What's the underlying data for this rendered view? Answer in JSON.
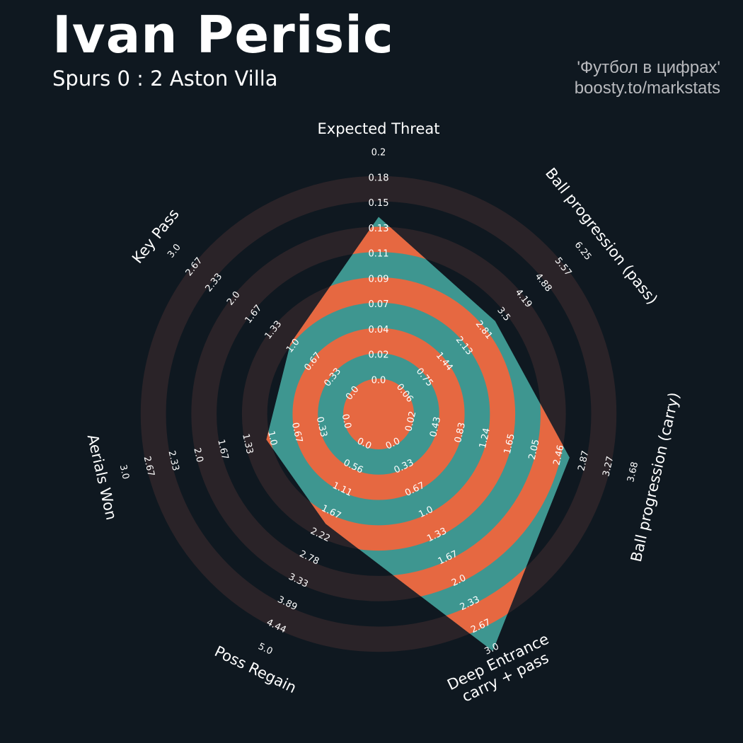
{
  "header": {
    "player_name": "Ivan Perisic",
    "match": "Spurs 0 : 2 Aston Villa"
  },
  "credit": {
    "line1": "'Футбол в цифрах'",
    "line2": "boosty.to/markstats"
  },
  "colors": {
    "background": "#0f1820",
    "ring_band": "#2a2328",
    "fill_teal": "#3e9690",
    "fill_orange": "#e66841",
    "text": "#ffffff"
  },
  "chart_data": {
    "type": "radar",
    "title": "",
    "params": [
      {
        "label": "Expected Threat",
        "min": 0.0,
        "max": 0.2,
        "value": 0.142,
        "ticks": [
          "0.0",
          "0.02",
          "0.04",
          "0.07",
          "0.09",
          "0.11",
          "0.13",
          "0.15",
          "0.18",
          "0.2"
        ]
      },
      {
        "label": "Ball progression (pass)",
        "min": 0.06,
        "max": 6.25,
        "value": 3.15,
        "ticks": [
          "0.06",
          "0.75",
          "1.44",
          "2.13",
          "2.81",
          "3.5",
          "4.19",
          "4.88",
          "5.57",
          "6.25"
        ]
      },
      {
        "label": "Ball progression (carry)",
        "min": 0.02,
        "max": 3.68,
        "value": 2.6,
        "ticks": [
          "0.02",
          "0.43",
          "0.83",
          "1.24",
          "1.65",
          "2.05",
          "2.46",
          "2.87",
          "3.27",
          "3.68"
        ]
      },
      {
        "label": "Deep Entrance\ncarry + pass",
        "min": 0.0,
        "max": 3.0,
        "value": 3.0,
        "ticks": [
          "0.0",
          "0.33",
          "0.67",
          "1.0",
          "1.33",
          "1.67",
          "2.0",
          "2.33",
          "2.67",
          "3.0"
        ]
      },
      {
        "label": "Poss Regain",
        "min": 0.0,
        "max": 5.0,
        "value": 1.9,
        "ticks": [
          "0.0",
          "0.56",
          "1.11",
          "1.67",
          "2.22",
          "2.78",
          "3.33",
          "3.89",
          "4.44",
          "5.0"
        ]
      },
      {
        "label": "Aerials Won",
        "min": 0.0,
        "max": 3.0,
        "value": 1.05,
        "ticks": [
          "0.0",
          "0.33",
          "0.67",
          "1.0",
          "1.33",
          "1.67",
          "2.0",
          "2.33",
          "2.67",
          "3.0"
        ]
      },
      {
        "label": "Key Pass",
        "min": 0.0,
        "max": 3.0,
        "value": 1.02,
        "ticks": [
          "0.0",
          "0.33",
          "0.67",
          "1.0",
          "1.33",
          "1.67",
          "2.0",
          "2.33",
          "2.67",
          "3.0"
        ]
      }
    ]
  }
}
